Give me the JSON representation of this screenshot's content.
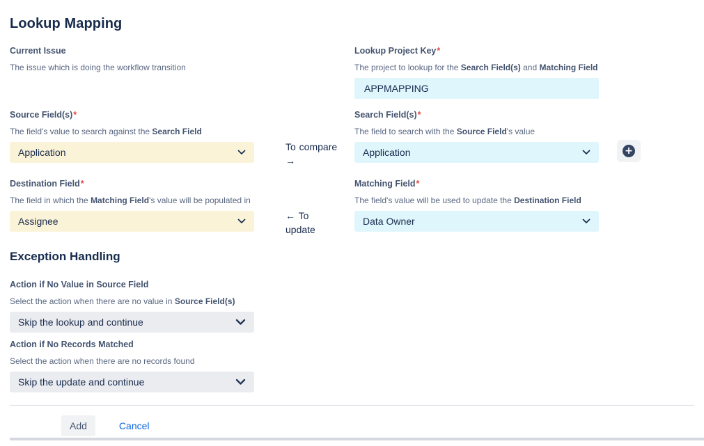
{
  "header": {
    "title": "Lookup Mapping"
  },
  "colors": {
    "heading_navy": "#172b4d",
    "label_slate": "#44546f",
    "required_red": "#e2483d",
    "source_highlight_yellow": "#fbf3d7",
    "lookup_highlight_cyan": "#dff6fc",
    "select_gray": "#ebecf0",
    "link_blue": "#0c66e4"
  },
  "icons": {
    "select_chevron": "chevron-down-icon",
    "add_search_field": "plus-icon"
  },
  "mapping": {
    "current_issue": {
      "label": "Current Issue",
      "description": [
        {
          "t": "The issue which is doing the workflow transition"
        }
      ]
    },
    "lookup_project_key": {
      "label": "Lookup Project Key",
      "required": "*",
      "description": [
        {
          "t": "The project to lookup for the "
        },
        {
          "t": "Search Field(s)",
          "b": true
        },
        {
          "t": " and "
        },
        {
          "t": "Matching Field",
          "b": true
        }
      ],
      "value": "APPMAPPING"
    },
    "source_field": {
      "label": "Source Field(s)",
      "required": "*",
      "description": [
        {
          "t": "The field's value to search against the "
        },
        {
          "t": "Search Field",
          "b": true
        }
      ],
      "value": "Application"
    },
    "search_field": {
      "label": "Search Field(s)",
      "required": "*",
      "description": [
        {
          "t": "The field to search with the "
        },
        {
          "t": "Source Field",
          "b": true
        },
        {
          "t": "'s value"
        }
      ],
      "value": "Application"
    },
    "destination_field": {
      "label": "Destination Field",
      "required": "*",
      "description": [
        {
          "t": "The field in which the "
        },
        {
          "t": "Matching Field",
          "b": true
        },
        {
          "t": "'s value will be populated in"
        }
      ],
      "value": "Assignee"
    },
    "matching_field": {
      "label": "Matching Field",
      "required": "*",
      "description": [
        {
          "t": "The field's value will be used to update the "
        },
        {
          "t": "Destination Field",
          "b": true
        }
      ],
      "value": "Data Owner"
    },
    "compare_connector": "To compare →",
    "update_connector": "← To update"
  },
  "exception": {
    "title": "Exception Handling",
    "no_value": {
      "label": "Action if No Value in Source Field",
      "description": [
        {
          "t": "Select the action when there are no value in "
        },
        {
          "t": "Source Field(s)",
          "b": true
        }
      ],
      "value": "Skip the lookup and continue"
    },
    "no_records": {
      "label": "Action if No Records Matched",
      "description": [
        {
          "t": "Select the action when there are no records found"
        }
      ],
      "value": "Skip the update and continue"
    }
  },
  "footer": {
    "add_label": "Add",
    "cancel_label": "Cancel"
  }
}
